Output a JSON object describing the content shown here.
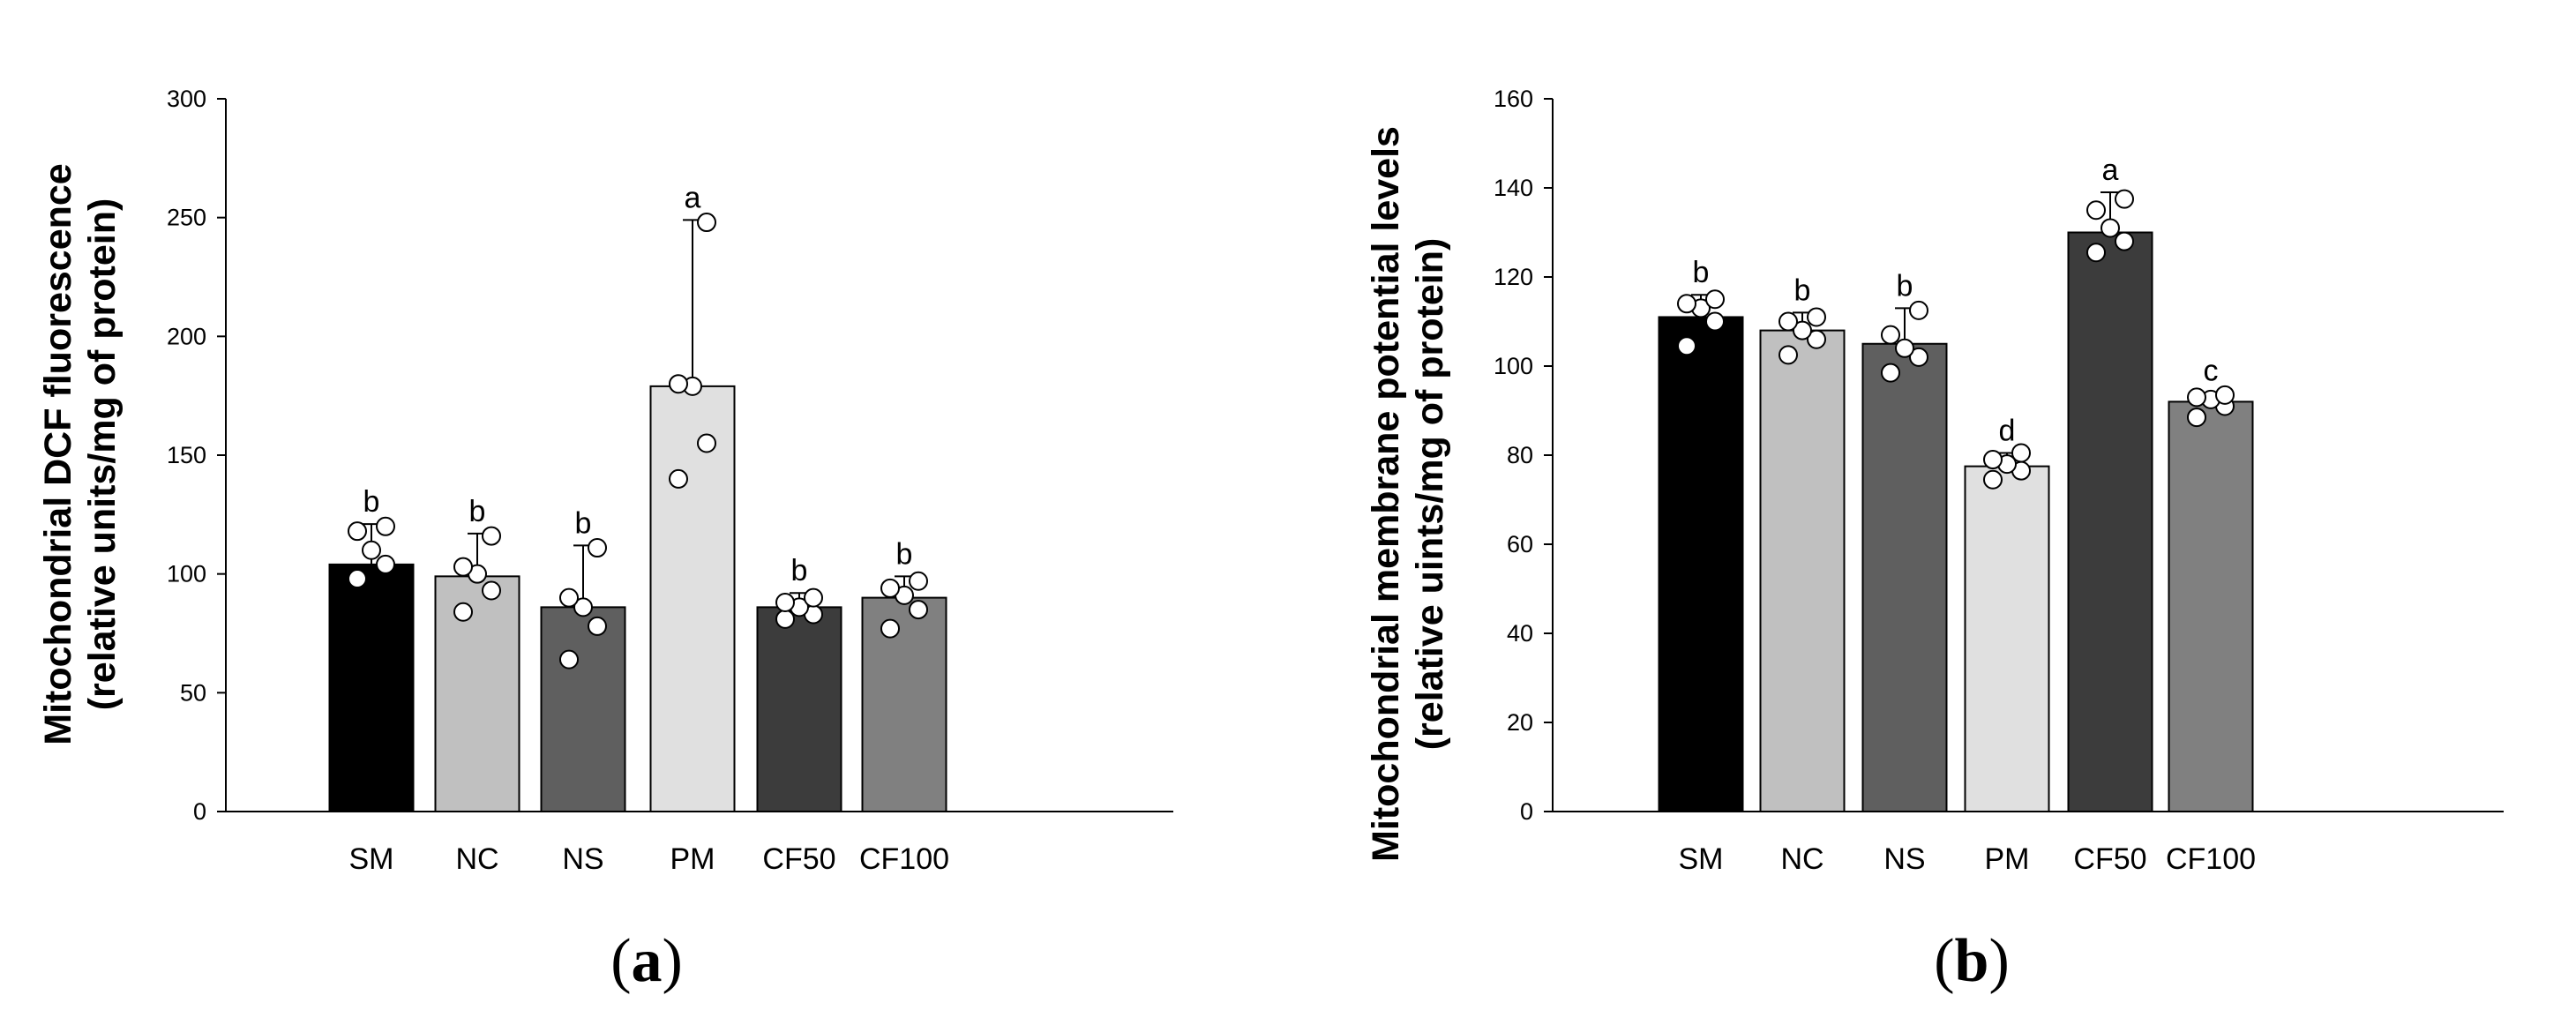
{
  "chart_data": [
    {
      "type": "bar",
      "panel_label": "a",
      "ylabel_line1": "Mitochondrial DCF fluorescence",
      "ylabel_line2": "(relative units/mg of protein)",
      "xlabel": "",
      "ylim": [
        0,
        300
      ],
      "yticks": [
        0,
        50,
        100,
        150,
        200,
        250,
        300
      ],
      "categories": [
        "SM",
        "NC",
        "NS",
        "PM",
        "CF50",
        "CF100"
      ],
      "values": [
        104,
        99,
        86,
        179,
        86,
        90
      ],
      "errors": [
        17,
        18,
        26,
        70,
        6,
        9
      ],
      "significance": [
        "b",
        "b",
        "b",
        "a",
        "b",
        "b"
      ],
      "bar_colors": [
        "#000000",
        "#c0c0c0",
        "#5f5f5f",
        "#e0e0e0",
        "#3c3c3c",
        "#808080"
      ],
      "points": [
        [
          98,
          104,
          110,
          118,
          120
        ],
        [
          84,
          93,
          100,
          103,
          116
        ],
        [
          64,
          78,
          86,
          90,
          111
        ],
        [
          140,
          155,
          179,
          180,
          248
        ],
        [
          81,
          83,
          86,
          88,
          90
        ],
        [
          77,
          85,
          91,
          94,
          97
        ]
      ]
    },
    {
      "type": "bar",
      "panel_label": "b",
      "ylabel_line1": "Mitochondrial membrane potential levels",
      "ylabel_line2": "(relative uints/mg of protein)",
      "xlabel": "",
      "ylim": [
        0,
        160
      ],
      "yticks": [
        0,
        20,
        40,
        60,
        80,
        100,
        120,
        140,
        160
      ],
      "categories": [
        "SM",
        "NC",
        "NS",
        "PM",
        "CF50",
        "CF100"
      ],
      "values": [
        111,
        108,
        105,
        77.5,
        130,
        92
      ],
      "errors": [
        5,
        4,
        8,
        3,
        9,
        2
      ],
      "significance": [
        "b",
        "b",
        "b",
        "d",
        "a",
        "c"
      ],
      "bar_colors": [
        "#000000",
        "#c0c0c0",
        "#5f5f5f",
        "#e0e0e0",
        "#3c3c3c",
        "#808080"
      ],
      "points": [
        [
          104.5,
          110,
          113,
          114,
          115
        ],
        [
          102.5,
          106,
          108,
          110,
          111
        ],
        [
          98.5,
          102,
          104,
          107,
          112.5
        ],
        [
          74.5,
          76.5,
          78,
          79,
          80.5
        ],
        [
          125.5,
          128,
          131,
          135,
          137.5
        ],
        [
          88.5,
          91,
          92.5,
          93,
          93.5
        ]
      ]
    }
  ]
}
